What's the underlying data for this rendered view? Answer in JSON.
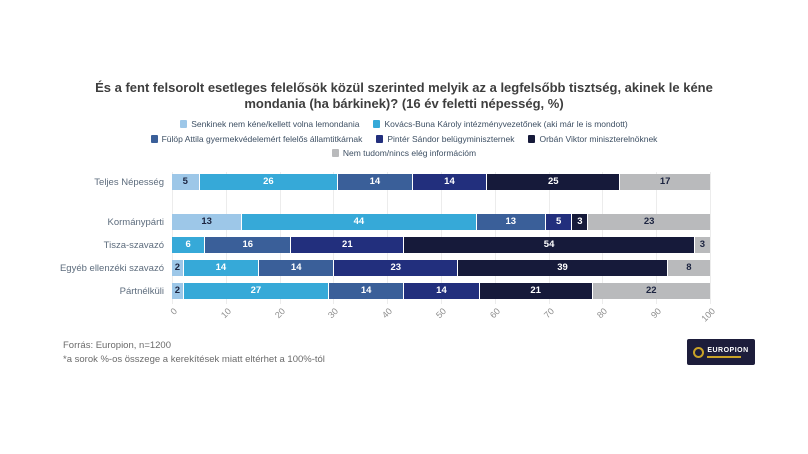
{
  "title": "És a fent felsorolt esetleges felelősök közül szerinted melyik az a legfelsőbb tisztség, akinek le kéne mondania (ha bárkinek)? (16 év feletti népesség, %)",
  "chart_data": {
    "type": "bar",
    "stacked": true,
    "orientation": "horizontal",
    "categories": [
      "Teljes Népesség",
      "Kormánypárti",
      "Tisza-szavazó",
      "Egyéb ellenzéki szavazó",
      "Pártnélküli"
    ],
    "series": [
      {
        "name": "Senkinek nem kéne/kellett volna lemondania",
        "color": "#9dc7e8",
        "label_color": "#1c2440",
        "values": [
          5,
          13,
          0,
          2,
          2
        ]
      },
      {
        "name": "Kovács-Buna Károly intézményvezetőnek (aki már le is mondott)",
        "color": "#36a9d8",
        "label_color": "#ffffff",
        "values": [
          26,
          44,
          6,
          14,
          27
        ]
      },
      {
        "name": "Fülöp Attila gyermekvédelemért felelős államtitkárnak",
        "color": "#3a5f99",
        "label_color": "#ffffff",
        "values": [
          14,
          13,
          16,
          14,
          14
        ]
      },
      {
        "name": "Pintér Sándor belügyminiszternek",
        "color": "#222f7d",
        "label_color": "#ffffff",
        "values": [
          14,
          5,
          21,
          23,
          14
        ]
      },
      {
        "name": "Orbán Viktor miniszterelnöknek",
        "color": "#161a3a",
        "label_color": "#ffffff",
        "values": [
          25,
          3,
          54,
          39,
          21
        ]
      },
      {
        "name": "Nem tudom/nincs elég információm",
        "color": "#b9babc",
        "label_color": "#1c2440",
        "values": [
          17,
          23,
          3,
          8,
          22
        ]
      }
    ],
    "xticks": [
      0,
      10,
      20,
      30,
      40,
      50,
      60,
      70,
      80,
      90,
      100
    ],
    "xlim": [
      0,
      100
    ],
    "grid": true,
    "legend_position": "top"
  },
  "legend_rows": [
    [
      0,
      1
    ],
    [
      2,
      3,
      4
    ],
    [
      5
    ]
  ],
  "footer": {
    "source": "Forrás: Europion, n=1200",
    "note": "*a sorok %-os összege a kerekítések miatt eltérhet a 100%-tól"
  },
  "logo": {
    "text": "EUROPION"
  }
}
